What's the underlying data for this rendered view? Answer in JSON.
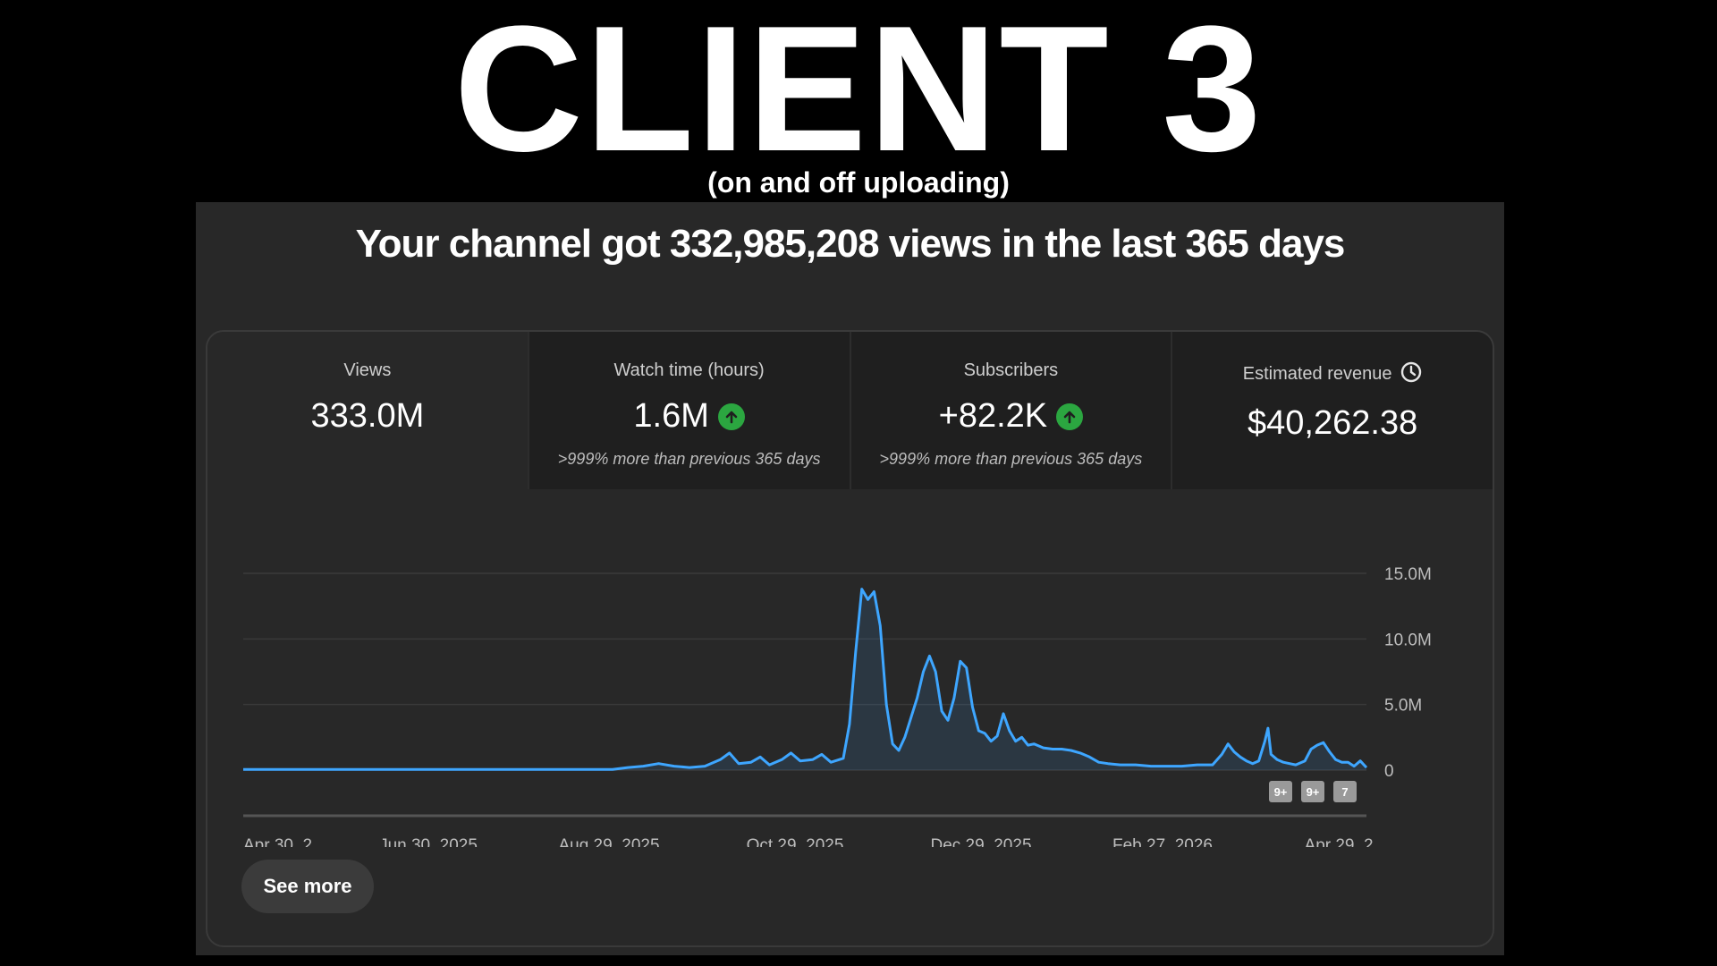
{
  "banner": {
    "title": "CLIENT 3",
    "subtitle": "(on and off uploading)"
  },
  "headline": "Your channel got 332,985,208 views in the last 365 days",
  "metrics": [
    {
      "label": "Views",
      "value": "333.0M",
      "note": "",
      "trend_icon": ""
    },
    {
      "label": "Watch time (hours)",
      "value": "1.6M",
      "note": ">999% more than previous 365 days",
      "trend_icon": "arrow-up-icon"
    },
    {
      "label": "Subscribers",
      "value": "+82.2K",
      "note": ">999% more than previous 365 days",
      "trend_icon": "arrow-up-icon"
    },
    {
      "label": "Estimated revenue",
      "value": "$40,262.38",
      "note": "",
      "trend_icon": "clock-icon"
    }
  ],
  "colors": {
    "line": "#3ea6ff",
    "trend_up": "#2ba640",
    "panel_bg": "#282828",
    "tab_bg": "#1f1f1f"
  },
  "see_more_label": "See more",
  "markers": [
    "9+",
    "9+",
    "7"
  ],
  "chart_data": {
    "type": "area",
    "x_tick_labels": [
      "Apr 30, 2...",
      "Jun 30, 2025",
      "Aug 29, 2025",
      "Oct 29, 2025",
      "Dec 29, 2025",
      "Feb 27, 2026",
      "Apr 29, 2..."
    ],
    "y_tick_labels": [
      "15.0M",
      "10.0M",
      "5.0M",
      "0"
    ],
    "ylim": [
      0,
      15000000
    ],
    "x_range_days": [
      0,
      365
    ],
    "series": [
      {
        "points": [
          [
            0,
            0.05
          ],
          [
            15,
            0.05
          ],
          [
            30,
            0.05
          ],
          [
            60,
            0.05
          ],
          [
            90,
            0.05
          ],
          [
            120,
            0.05
          ],
          [
            125,
            0.2
          ],
          [
            130,
            0.3
          ],
          [
            135,
            0.5
          ],
          [
            140,
            0.3
          ],
          [
            145,
            0.2
          ],
          [
            150,
            0.3
          ],
          [
            155,
            0.8
          ],
          [
            158,
            1.3
          ],
          [
            161,
            0.5
          ],
          [
            165,
            0.6
          ],
          [
            168,
            1.0
          ],
          [
            171,
            0.4
          ],
          [
            175,
            0.8
          ],
          [
            178,
            1.3
          ],
          [
            181,
            0.7
          ],
          [
            185,
            0.8
          ],
          [
            188,
            1.2
          ],
          [
            191,
            0.6
          ],
          [
            195,
            0.9
          ],
          [
            197,
            3.5
          ],
          [
            199,
            9.0
          ],
          [
            201,
            13.8
          ],
          [
            203,
            13.0
          ],
          [
            205,
            13.6
          ],
          [
            207,
            11.0
          ],
          [
            209,
            5.0
          ],
          [
            211,
            2.0
          ],
          [
            213,
            1.5
          ],
          [
            215,
            2.5
          ],
          [
            217,
            4.0
          ],
          [
            219,
            5.5
          ],
          [
            221,
            7.5
          ],
          [
            223,
            8.7
          ],
          [
            225,
            7.5
          ],
          [
            227,
            4.5
          ],
          [
            229,
            3.8
          ],
          [
            231,
            5.5
          ],
          [
            233,
            8.3
          ],
          [
            235,
            7.8
          ],
          [
            237,
            4.8
          ],
          [
            239,
            3.0
          ],
          [
            241,
            2.8
          ],
          [
            243,
            2.2
          ],
          [
            245,
            2.6
          ],
          [
            247,
            4.3
          ],
          [
            249,
            3.0
          ],
          [
            251,
            2.2
          ],
          [
            253,
            2.5
          ],
          [
            255,
            1.9
          ],
          [
            257,
            2.0
          ],
          [
            260,
            1.7
          ],
          [
            263,
            1.6
          ],
          [
            266,
            1.6
          ],
          [
            269,
            1.5
          ],
          [
            272,
            1.3
          ],
          [
            275,
            1.0
          ],
          [
            278,
            0.6
          ],
          [
            281,
            0.5
          ],
          [
            285,
            0.4
          ],
          [
            290,
            0.4
          ],
          [
            295,
            0.3
          ],
          [
            300,
            0.3
          ],
          [
            305,
            0.3
          ],
          [
            310,
            0.4
          ],
          [
            315,
            0.4
          ],
          [
            318,
            1.2
          ],
          [
            320,
            2.0
          ],
          [
            322,
            1.4
          ],
          [
            324,
            1.0
          ],
          [
            326,
            0.7
          ],
          [
            328,
            0.5
          ],
          [
            330,
            0.7
          ],
          [
            332,
            2.2
          ],
          [
            333,
            3.2
          ],
          [
            334,
            1.2
          ],
          [
            336,
            0.8
          ],
          [
            338,
            0.6
          ],
          [
            340,
            0.5
          ],
          [
            342,
            0.4
          ],
          [
            345,
            0.7
          ],
          [
            347,
            1.6
          ],
          [
            349,
            1.9
          ],
          [
            351,
            2.1
          ],
          [
            353,
            1.4
          ],
          [
            355,
            0.8
          ],
          [
            357,
            0.6
          ],
          [
            359,
            0.6
          ],
          [
            361,
            0.3
          ],
          [
            363,
            0.7
          ],
          [
            365,
            0.2
          ]
        ]
      }
    ],
    "grid": true,
    "legend": "none"
  }
}
